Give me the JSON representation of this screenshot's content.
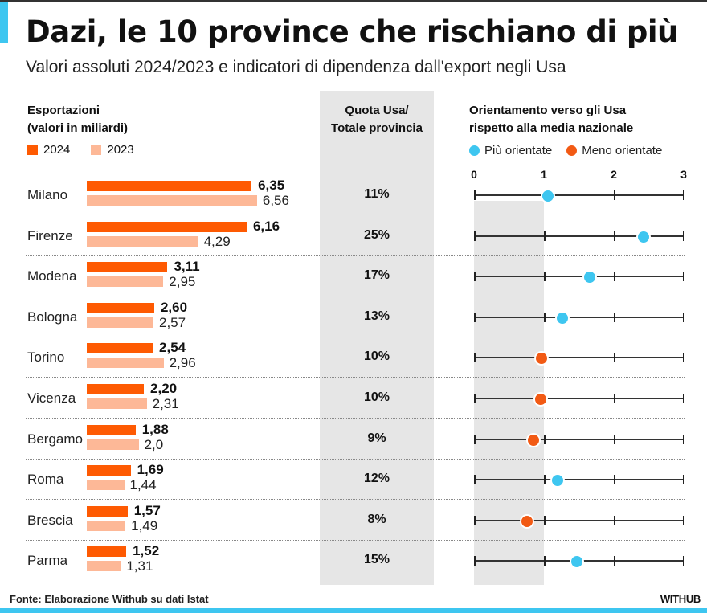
{
  "title": "Dazi, le 10 province che rischiano di più",
  "subtitle": "Valori assoluti 2024/2023 e indicatori di dipendenza dall'export negli Usa",
  "colors": {
    "accent": "#3ec6f0",
    "bar_2024": "#fe5a02",
    "bar_2023": "#fdb897",
    "more_oriented": "#3ec6f0",
    "less_oriented": "#f25a14",
    "panel_gray": "#e6e6e6"
  },
  "left_header": {
    "line1": "Esportazioni",
    "line2": "(valori in miliardi)"
  },
  "left_legend": [
    {
      "label": "2024"
    },
    {
      "label": "2023"
    }
  ],
  "quota_header": {
    "line1": "Quota Usa/",
    "line2": "Totale provincia"
  },
  "orient_header": {
    "line1": "Orientamento verso gli Usa",
    "line2": "rispetto alla media nazionale"
  },
  "orient_legend": [
    {
      "label": "Più orientate"
    },
    {
      "label": "Meno orientate"
    }
  ],
  "footer": {
    "source": "Fonte: Elaborazione Withub su dati Istat",
    "brand": "WITHUB"
  },
  "chart_data": [
    {
      "type": "bar",
      "title": "Esportazioni (valori in miliardi)",
      "orientation": "horizontal",
      "categories": [
        "Milano",
        "Firenze",
        "Modena",
        "Bologna",
        "Torino",
        "Vicenza",
        "Bergamo",
        "Roma",
        "Brescia",
        "Parma"
      ],
      "series": [
        {
          "name": "2024",
          "values": [
            6.35,
            6.16,
            3.11,
            2.6,
            2.54,
            2.2,
            1.88,
            1.69,
            1.57,
            1.52
          ],
          "labels": [
            "6,35",
            "6,16",
            "3,11",
            "2,60",
            "2,54",
            "2,20",
            "1,88",
            "1,69",
            "1,57",
            "1,52"
          ]
        },
        {
          "name": "2023",
          "values": [
            6.56,
            4.29,
            2.95,
            2.57,
            2.96,
            2.31,
            2.0,
            1.44,
            1.49,
            1.31
          ],
          "labels": [
            "6,56",
            "4,29",
            "2,95",
            "2,57",
            "2,96",
            "2,31",
            "2,0",
            "1,44",
            "1,49",
            "1,31"
          ]
        }
      ],
      "legend": "top-left"
    },
    {
      "type": "table",
      "title": "Quota Usa/Totale provincia",
      "categories": [
        "Milano",
        "Firenze",
        "Modena",
        "Bologna",
        "Torino",
        "Vicenza",
        "Bergamo",
        "Roma",
        "Brescia",
        "Parma"
      ],
      "values": [
        "11%",
        "25%",
        "17%",
        "13%",
        "10%",
        "10%",
        "9%",
        "12%",
        "8%",
        "15%"
      ]
    },
    {
      "type": "scatter",
      "title": "Orientamento verso gli Usa rispetto alla media nazionale",
      "categories": [
        "Milano",
        "Firenze",
        "Modena",
        "Bologna",
        "Torino",
        "Vicenza",
        "Bergamo",
        "Roma",
        "Brescia",
        "Parma"
      ],
      "values": [
        1.06,
        2.43,
        1.65,
        1.26,
        0.96,
        0.95,
        0.85,
        1.19,
        0.76,
        1.47
      ],
      "groups": [
        "Più orientate",
        "Più orientate",
        "Più orientate",
        "Più orientate",
        "Meno orientate",
        "Meno orientate",
        "Meno orientate",
        "Più orientate",
        "Meno orientate",
        "Più orientate"
      ],
      "xlim": [
        0,
        3
      ],
      "xticks": [
        "0",
        "1",
        "2",
        "3"
      ],
      "legend": "top"
    }
  ]
}
